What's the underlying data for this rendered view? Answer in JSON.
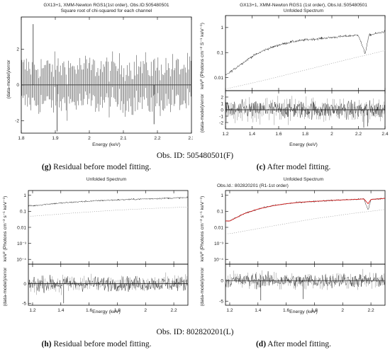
{
  "figure": {
    "obs_top": "Obs. ID: 505480501(F)",
    "obs_bottom": "Obs. ID: 802820201(L)",
    "caption_g_letter": "(g)",
    "caption_g_text": " Residual before model fitting.",
    "caption_c_letter": "(c)",
    "caption_c_text": " After model fitting.",
    "caption_h_letter": "(h)",
    "caption_h_text": " Residual before model fitting.",
    "caption_d_letter": "(d)",
    "caption_d_text": " After model fitting.",
    "colors": {
      "data": "#111111",
      "model_red": "#d42020",
      "background_dots": "#9a9a9a",
      "frame": "#000000"
    }
  },
  "chart_data": [
    {
      "id": "g",
      "type": "line",
      "title": "GX13+1, XMM-Newton RGS1(1st order), Obs.ID:505480501",
      "subtitle": "Square root of chi-squared for each channel",
      "xlabel": "Energy (keV)",
      "ylabel": "(data-model)/error",
      "xlim": [
        1.8,
        2.3
      ],
      "ylim": [
        -2.7,
        3.8
      ],
      "xticks": [
        1.8,
        1.9,
        2,
        2.1,
        2.2,
        2.3
      ],
      "yticks": [
        -2,
        0,
        2
      ],
      "zero_line": true,
      "series": [
        {
          "style": "vertical residual bars",
          "x_range": [
            1.8,
            2.3
          ],
          "amplitude": 1.6,
          "extremes": [
            {
              "x": 1.835,
              "y": 3.4
            },
            {
              "x": 1.905,
              "y": -2.6
            },
            {
              "x": 2.19,
              "y": -2.2
            }
          ]
        }
      ]
    },
    {
      "id": "c",
      "type": "line",
      "title": "GX13+1, XMM-Newton RGS1 (1st order), Obs.Id.:505480501",
      "subtitle": "Unfolded Spectrum",
      "xlabel": "Energy (keV)",
      "ylabel_top": "keV² (Photons cm⁻² S⁻¹ keV⁻¹)",
      "ylabel_bottom": "(data-model)/error",
      "xlim": [
        1.2,
        2.4
      ],
      "xticks": [
        1.2,
        1.4,
        1.6,
        1.8,
        2,
        2.2,
        2.4
      ],
      "top_ylim_log": [
        0.003,
        3
      ],
      "top_yticks": [
        1,
        0.1,
        0.01
      ],
      "bottom_ylim": [
        -3,
        3
      ],
      "bottom_yticks": [
        2,
        1,
        0,
        -1,
        -2
      ],
      "series": [
        {
          "name": "",
          "style": "data",
          "points": [
            [
              1.2,
              0.012
            ],
            [
              1.3,
              0.03
            ],
            [
              1.4,
              0.07
            ],
            [
              1.5,
              0.13
            ],
            [
              1.6,
              0.2
            ],
            [
              1.7,
              0.27
            ],
            [
              1.8,
              0.32
            ],
            [
              1.9,
              0.36
            ],
            [
              2.0,
              0.4
            ],
            [
              2.1,
              0.45
            ],
            [
              2.2,
              0.5
            ],
            [
              2.25,
              0.09
            ],
            [
              2.28,
              0.5
            ],
            [
              2.35,
              0.6
            ],
            [
              2.4,
              0.7
            ]
          ]
        },
        {
          "name": "",
          "style": "dotted background",
          "points": [
            [
              1.2,
              0.0035
            ],
            [
              1.5,
              0.008
            ],
            [
              1.8,
              0.02
            ],
            [
              2.1,
              0.05
            ],
            [
              2.4,
              0.12
            ]
          ]
        }
      ]
    },
    {
      "id": "h",
      "type": "line",
      "title": "",
      "subtitle": "Unfolded Spectrum",
      "xlabel": "Energy (keV)",
      "ylabel_top": "keV² (Photons cm⁻² s⁻¹ keV⁻¹)",
      "ylabel_bottom": "(data-model)/error",
      "xlim": [
        1.17,
        2.3
      ],
      "xticks": [
        1.2,
        1.4,
        1.6,
        1.8,
        2,
        2.2
      ],
      "top_ylim_log": [
        5e-05,
        2
      ],
      "top_yticks": [
        "1",
        "0.1",
        "0.01",
        "10⁻³",
        "10⁻⁴"
      ],
      "bottom_ylim": [
        -5.5,
        5
      ],
      "bottom_yticks": [
        0,
        -5
      ],
      "series": [
        {
          "name": "",
          "style": "data",
          "points": [
            [
              1.2,
              0.22
            ],
            [
              1.3,
              0.28
            ],
            [
              1.4,
              0.33
            ],
            [
              1.5,
              0.38
            ],
            [
              1.6,
              0.43
            ],
            [
              1.7,
              0.48
            ],
            [
              1.8,
              0.52
            ],
            [
              1.9,
              0.56
            ],
            [
              2.0,
              0.6
            ],
            [
              2.1,
              0.64
            ],
            [
              2.2,
              0.68
            ],
            [
              2.25,
              0.7
            ]
          ]
        },
        {
          "name": "",
          "style": "dotted background",
          "points": [
            [
              1.2,
              0.05
            ],
            [
              1.5,
              0.08
            ],
            [
              1.8,
              0.12
            ],
            [
              2.1,
              0.16
            ],
            [
              2.25,
              0.18
            ]
          ]
        }
      ]
    },
    {
      "id": "d",
      "type": "line",
      "title": "Obs.Id.: 802820201 (R1-1st order)",
      "subtitle": "Unfolded Spectrum",
      "xlabel": "Energy (keV)",
      "ylabel_top": "keV² (Photons cm⁻² s⁻¹ keV⁻¹)",
      "ylabel_bottom": "(data-model)/error",
      "xlim": [
        1.17,
        2.3
      ],
      "xticks": [
        1.2,
        1.4,
        1.6,
        1.8,
        2,
        2.2
      ],
      "top_ylim_log": [
        5e-05,
        2
      ],
      "top_yticks": [
        "1",
        "0.1",
        "0.01",
        "10⁻³",
        "10⁻⁴"
      ],
      "bottom_ylim": [
        -6,
        4
      ],
      "bottom_yticks": [
        0,
        -5
      ],
      "series": [
        {
          "name": "",
          "style": "data",
          "points": [
            [
              1.2,
              0.025
            ],
            [
              1.3,
              0.07
            ],
            [
              1.4,
              0.14
            ],
            [
              1.5,
              0.22
            ],
            [
              1.6,
              0.3
            ],
            [
              1.7,
              0.37
            ],
            [
              1.8,
              0.42
            ],
            [
              1.9,
              0.47
            ],
            [
              2.0,
              0.52
            ],
            [
              2.1,
              0.56
            ],
            [
              2.15,
              0.6
            ],
            [
              2.18,
              0.12
            ],
            [
              2.2,
              0.55
            ],
            [
              2.3,
              0.65
            ]
          ]
        },
        {
          "name": "",
          "style": "model (red)",
          "points": [
            [
              1.2,
              0.025
            ],
            [
              1.3,
              0.07
            ],
            [
              1.4,
              0.14
            ],
            [
              1.5,
              0.22
            ],
            [
              1.6,
              0.3
            ],
            [
              1.7,
              0.37
            ],
            [
              1.8,
              0.42
            ],
            [
              1.9,
              0.47
            ],
            [
              2.0,
              0.52
            ],
            [
              2.1,
              0.56
            ],
            [
              2.15,
              0.6
            ],
            [
              2.18,
              0.3
            ],
            [
              2.2,
              0.55
            ],
            [
              2.3,
              0.65
            ]
          ]
        },
        {
          "name": "",
          "style": "dotted background",
          "points": [
            [
              1.2,
              0.004
            ],
            [
              1.5,
              0.012
            ],
            [
              1.8,
              0.035
            ],
            [
              2.1,
              0.08
            ],
            [
              2.3,
              0.13
            ]
          ]
        }
      ]
    }
  ]
}
